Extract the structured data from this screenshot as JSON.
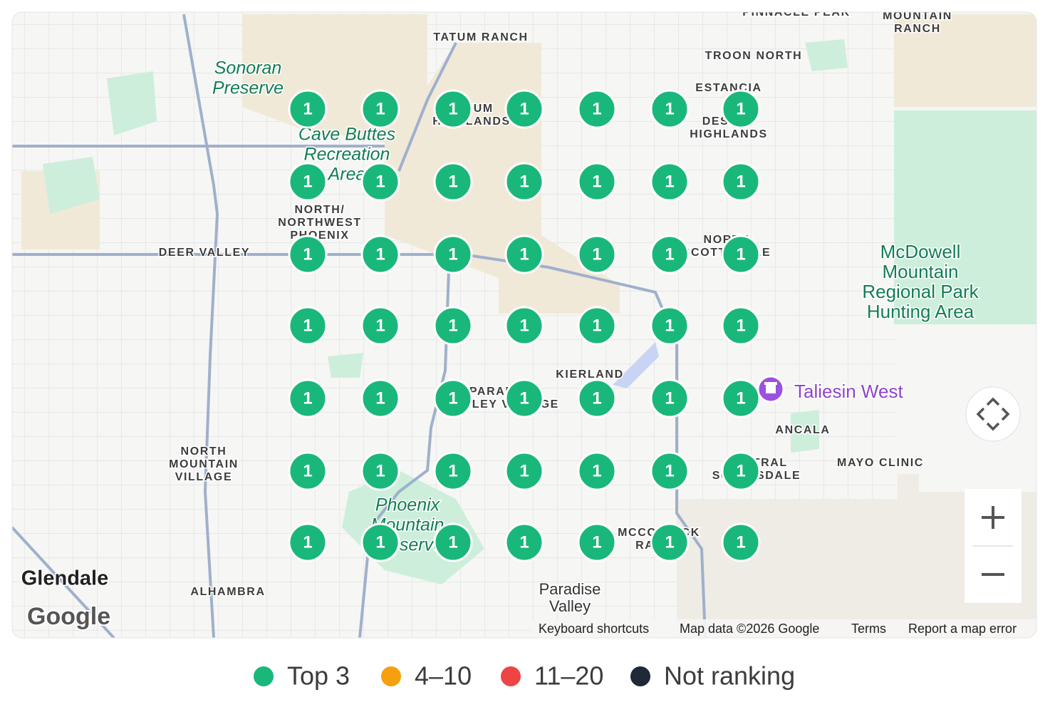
{
  "map": {
    "labels": [
      {
        "lines": [
          "TATUM RANCH"
        ]
      },
      {
        "lines": [
          "PINNACLE PEAK"
        ]
      },
      {
        "lines": [
          "MOUNTAIN",
          "RANCH"
        ]
      },
      {
        "lines": [
          "TROON NORTH"
        ]
      },
      {
        "lines": [
          "ESTANCIA"
        ]
      },
      {
        "lines": [
          "DESERT",
          "HIGHLANDS"
        ]
      },
      {
        "lines": [
          "TATUM",
          "HIGHLANDS"
        ]
      },
      {
        "lines": [
          "Sonoran",
          "Preserve"
        ]
      },
      {
        "lines": [
          "Cave Buttes",
          "Recreation",
          "Area"
        ]
      },
      {
        "lines": [
          "NORTH/",
          "NORTHWEST",
          "PHOENIX"
        ]
      },
      {
        "lines": [
          "DEER VALLEY"
        ]
      },
      {
        "lines": [
          "NORTH",
          "SCOTTSDALE"
        ]
      },
      {
        "lines": [
          "McDowell",
          "Mountain",
          "Regional Park",
          "Hunting Area"
        ]
      },
      {
        "lines": [
          "KIERLAND"
        ]
      },
      {
        "lines": [
          "Taliesin West"
        ]
      },
      {
        "lines": [
          "ANCALA"
        ]
      },
      {
        "lines": [
          "MAYO CLINIC"
        ]
      },
      {
        "lines": [
          "CENTRAL",
          "SCOTTSDALE"
        ]
      },
      {
        "lines": [
          "PARADISE",
          "VALLEY VILLAGE"
        ]
      },
      {
        "lines": [
          "NORTH",
          "MOUNTAIN",
          "VILLAGE"
        ]
      },
      {
        "lines": [
          "Phoenix",
          "Mountain",
          "Preserve"
        ]
      },
      {
        "lines": [
          "MCCORMICK",
          "RANCH"
        ]
      },
      {
        "lines": [
          "Paradise",
          "Valley"
        ]
      },
      {
        "lines": [
          "Glendale"
        ]
      },
      {
        "lines": [
          "ALHAMBRA"
        ]
      }
    ],
    "markers": [
      [
        1,
        1,
        1,
        1,
        1,
        1,
        1
      ],
      [
        1,
        1,
        1,
        1,
        1,
        1,
        1
      ],
      [
        1,
        1,
        1,
        1,
        1,
        1,
        1
      ],
      [
        1,
        1,
        1,
        1,
        1,
        1,
        1
      ],
      [
        1,
        1,
        1,
        1,
        1,
        1,
        1
      ],
      [
        1,
        1,
        1,
        1,
        1,
        1,
        1
      ],
      [
        1,
        1,
        1,
        1,
        1,
        1,
        1
      ]
    ],
    "logo": "Google",
    "attribution": [
      "Keyboard shortcuts",
      "Map data ©2026 Google",
      "Terms",
      "Report a map error"
    ]
  },
  "legend": [
    {
      "label": "Top 3",
      "color": "#19b87a"
    },
    {
      "label": "4–10",
      "color": "#f5a00f"
    },
    {
      "label": "11–20",
      "color": "#ef4444"
    },
    {
      "label": "Not ranking",
      "color": "#1f2937"
    }
  ]
}
